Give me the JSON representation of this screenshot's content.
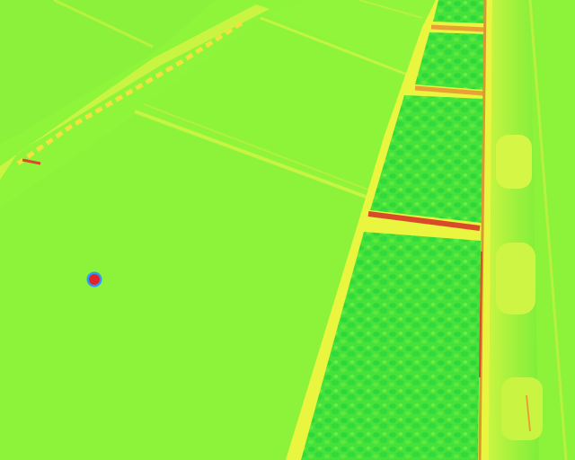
{
  "image": {
    "kind": "thermal-false-color-aerial",
    "description_visible_text": "",
    "palette": {
      "background": "#8ef53a",
      "panel": "#8cf23a",
      "panel_light": "#a6f83c",
      "seam": "#c9f542",
      "seam_hot": "#f2e23e",
      "gravel": "#4ee63c",
      "gravel_dark": "#2fd83a",
      "frame_hot": "#e8a233",
      "frame_red": "#d84a2a",
      "hotspot_red": "#e0242a",
      "hotspot_ring": "#2a9aff",
      "edge_yellow": "#e9f53e"
    },
    "hotspot": {
      "label": "",
      "fill_color": "#e0242a",
      "ring_color": "#2a9aff"
    }
  }
}
